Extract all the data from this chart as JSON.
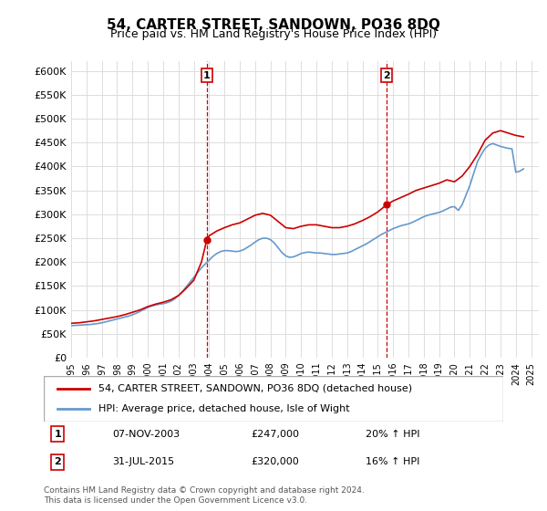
{
  "title": "54, CARTER STREET, SANDOWN, PO36 8DQ",
  "subtitle": "Price paid vs. HM Land Registry's House Price Index (HPI)",
  "legend_line1": "54, CARTER STREET, SANDOWN, PO36 8DQ (detached house)",
  "legend_line2": "HPI: Average price, detached house, Isle of Wight",
  "annotation1_label": "1",
  "annotation1_date": "07-NOV-2003",
  "annotation1_price": "£247,000",
  "annotation1_hpi": "20% ↑ HPI",
  "annotation2_label": "2",
  "annotation2_date": "31-JUL-2015",
  "annotation2_price": "£320,000",
  "annotation2_hpi": "16% ↑ HPI",
  "footnote": "Contains HM Land Registry data © Crown copyright and database right 2024.\nThis data is licensed under the Open Government Licence v3.0.",
  "red_color": "#cc0000",
  "blue_color": "#6699cc",
  "vline_color": "#cc0000",
  "ylim": [
    0,
    620000
  ],
  "yticks": [
    0,
    50000,
    100000,
    150000,
    200000,
    250000,
    300000,
    350000,
    400000,
    450000,
    500000,
    550000,
    600000
  ],
  "xlim_start": 1995.0,
  "xlim_end": 2025.5,
  "point1_x": 2003.85,
  "point1_y": 247000,
  "point2_x": 2015.58,
  "point2_y": 320000,
  "hpi_data": {
    "x": [
      1995.0,
      1995.25,
      1995.5,
      1995.75,
      1996.0,
      1996.25,
      1996.5,
      1996.75,
      1997.0,
      1997.25,
      1997.5,
      1997.75,
      1998.0,
      1998.25,
      1998.5,
      1998.75,
      1999.0,
      1999.25,
      1999.5,
      1999.75,
      2000.0,
      2000.25,
      2000.5,
      2000.75,
      2001.0,
      2001.25,
      2001.5,
      2001.75,
      2002.0,
      2002.25,
      2002.5,
      2002.75,
      2003.0,
      2003.25,
      2003.5,
      2003.75,
      2004.0,
      2004.25,
      2004.5,
      2004.75,
      2005.0,
      2005.25,
      2005.5,
      2005.75,
      2006.0,
      2006.25,
      2006.5,
      2006.75,
      2007.0,
      2007.25,
      2007.5,
      2007.75,
      2008.0,
      2008.25,
      2008.5,
      2008.75,
      2009.0,
      2009.25,
      2009.5,
      2009.75,
      2010.0,
      2010.25,
      2010.5,
      2010.75,
      2011.0,
      2011.25,
      2011.5,
      2011.75,
      2012.0,
      2012.25,
      2012.5,
      2012.75,
      2013.0,
      2013.25,
      2013.5,
      2013.75,
      2014.0,
      2014.25,
      2014.5,
      2014.75,
      2015.0,
      2015.25,
      2015.5,
      2015.75,
      2016.0,
      2016.25,
      2016.5,
      2016.75,
      2017.0,
      2017.25,
      2017.5,
      2017.75,
      2018.0,
      2018.25,
      2018.5,
      2018.75,
      2019.0,
      2019.25,
      2019.5,
      2019.75,
      2020.0,
      2020.25,
      2020.5,
      2020.75,
      2021.0,
      2021.25,
      2021.5,
      2021.75,
      2022.0,
      2022.25,
      2022.5,
      2022.75,
      2023.0,
      2023.25,
      2023.5,
      2023.75,
      2024.0,
      2024.25,
      2024.5
    ],
    "y": [
      67000,
      67500,
      68000,
      68500,
      69000,
      69500,
      70500,
      71500,
      73000,
      75000,
      77000,
      79000,
      81000,
      83000,
      85000,
      87000,
      90000,
      93000,
      97000,
      101000,
      105000,
      108000,
      110000,
      112000,
      113000,
      115000,
      118000,
      123000,
      130000,
      138000,
      148000,
      158000,
      168000,
      178000,
      188000,
      196000,
      204000,
      212000,
      218000,
      222000,
      224000,
      224000,
      223000,
      222000,
      223000,
      226000,
      231000,
      236000,
      242000,
      247000,
      250000,
      250000,
      247000,
      240000,
      230000,
      220000,
      213000,
      210000,
      211000,
      214000,
      218000,
      220000,
      221000,
      220000,
      219000,
      219000,
      218000,
      217000,
      216000,
      216000,
      217000,
      218000,
      219000,
      222000,
      226000,
      230000,
      234000,
      238000,
      243000,
      248000,
      253000,
      258000,
      262000,
      266000,
      270000,
      273000,
      276000,
      278000,
      280000,
      283000,
      287000,
      291000,
      295000,
      298000,
      300000,
      302000,
      304000,
      307000,
      311000,
      315000,
      316000,
      308000,
      320000,
      340000,
      360000,
      385000,
      410000,
      425000,
      438000,
      445000,
      448000,
      445000,
      442000,
      440000,
      438000,
      437000,
      388000,
      390000,
      395000
    ]
  },
  "red_data": {
    "x": [
      1995.0,
      1995.5,
      1996.0,
      1996.5,
      1997.0,
      1997.5,
      1998.0,
      1998.5,
      1999.0,
      1999.5,
      2000.0,
      2000.5,
      2001.0,
      2001.5,
      2002.0,
      2002.5,
      2003.0,
      2003.5,
      2003.85,
      2004.0,
      2004.5,
      2005.0,
      2005.5,
      2006.0,
      2006.5,
      2007.0,
      2007.5,
      2008.0,
      2008.5,
      2009.0,
      2009.5,
      2010.0,
      2010.5,
      2011.0,
      2011.5,
      2012.0,
      2012.5,
      2013.0,
      2013.5,
      2014.0,
      2014.5,
      2015.0,
      2015.58,
      2016.0,
      2016.5,
      2017.0,
      2017.5,
      2018.0,
      2018.5,
      2019.0,
      2019.5,
      2020.0,
      2020.5,
      2021.0,
      2021.5,
      2022.0,
      2022.5,
      2023.0,
      2023.5,
      2024.0,
      2024.5
    ],
    "y": [
      72000,
      73000,
      75000,
      77000,
      80000,
      83000,
      86000,
      90000,
      95000,
      100000,
      107000,
      112000,
      116000,
      121000,
      130000,
      145000,
      162000,
      200000,
      247000,
      255000,
      265000,
      272000,
      278000,
      282000,
      290000,
      298000,
      302000,
      298000,
      285000,
      272000,
      270000,
      275000,
      278000,
      278000,
      275000,
      272000,
      272000,
      275000,
      280000,
      287000,
      295000,
      305000,
      320000,
      328000,
      335000,
      342000,
      350000,
      355000,
      360000,
      365000,
      372000,
      368000,
      380000,
      400000,
      425000,
      455000,
      470000,
      475000,
      470000,
      465000,
      462000
    ]
  }
}
